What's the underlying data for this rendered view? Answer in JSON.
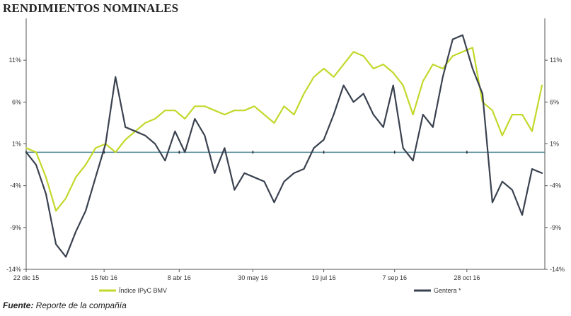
{
  "title": "RENDIMIENTOS NOMINALES",
  "source": {
    "label": "Fuente:",
    "text": " Reporte de la compañía"
  },
  "chart_data": {
    "type": "line",
    "title": "RENDIMIENTOS NOMINALES",
    "xlabel": "",
    "ylabel": "",
    "ylim": [
      -14,
      16
    ],
    "y_ticks": [
      "11%",
      "6%",
      "1%",
      "-4%",
      "-9%",
      "-14%"
    ],
    "y_tick_values": [
      11,
      6,
      1,
      -4,
      -9,
      -14
    ],
    "x_tick_labels": [
      "22 dic 15",
      "15 feb 16",
      "8 abr 16",
      "30 may 16",
      "19 jul 16",
      "7 sep 16",
      "28 oct 16"
    ],
    "x_tick_dates": [
      "2015-12-22",
      "2016-02-15",
      "2016-04-08",
      "2016-05-30",
      "2016-07-19",
      "2016-09-07",
      "2016-10-28"
    ],
    "x_range": [
      "2015-12-22",
      "2016-12-22"
    ],
    "baseline": 0,
    "grid": false,
    "axes_on_both_sides": true,
    "legend_position": "bottom",
    "colors": {
      "indice": "#c3d82b",
      "gentera": "#3a4250",
      "baseline": "#4e8496"
    },
    "series": [
      {
        "name": "Índice IPyC BMV",
        "x": [
          "2015-12-22",
          "2015-12-29",
          "2016-01-05",
          "2016-01-12",
          "2016-01-19",
          "2016-01-26",
          "2016-02-02",
          "2016-02-09",
          "2016-02-16",
          "2016-02-23",
          "2016-03-01",
          "2016-03-08",
          "2016-03-15",
          "2016-03-22",
          "2016-03-29",
          "2016-04-05",
          "2016-04-12",
          "2016-04-19",
          "2016-04-26",
          "2016-05-03",
          "2016-05-10",
          "2016-05-17",
          "2016-05-24",
          "2016-05-31",
          "2016-06-07",
          "2016-06-14",
          "2016-06-21",
          "2016-06-28",
          "2016-07-05",
          "2016-07-12",
          "2016-07-19",
          "2016-07-26",
          "2016-08-02",
          "2016-08-09",
          "2016-08-16",
          "2016-08-23",
          "2016-08-30",
          "2016-09-06",
          "2016-09-13",
          "2016-09-20",
          "2016-09-27",
          "2016-10-04",
          "2016-10-11",
          "2016-10-18",
          "2016-10-25",
          "2016-11-01",
          "2016-11-08",
          "2016-11-15",
          "2016-11-22",
          "2016-11-29",
          "2016-12-06",
          "2016-12-13",
          "2016-12-20"
        ],
        "values": [
          0.5,
          0.0,
          -3.0,
          -7.0,
          -5.5,
          -3.0,
          -1.5,
          0.5,
          1.0,
          0.0,
          1.5,
          2.5,
          3.5,
          4.0,
          5.0,
          5.0,
          4.0,
          5.5,
          5.5,
          5.0,
          4.5,
          5.0,
          5.0,
          5.5,
          4.5,
          3.5,
          5.5,
          4.5,
          7.0,
          9.0,
          10.0,
          9.0,
          10.5,
          12.0,
          11.5,
          10.0,
          10.5,
          9.5,
          8.0,
          4.5,
          8.5,
          10.5,
          10.0,
          11.5,
          12.0,
          12.5,
          6.0,
          5.0,
          2.0,
          4.5,
          4.5,
          2.5,
          8.0
        ]
      },
      {
        "name": "Gentera *",
        "x": [
          "2015-12-22",
          "2015-12-29",
          "2016-01-05",
          "2016-01-12",
          "2016-01-19",
          "2016-01-26",
          "2016-02-02",
          "2016-02-09",
          "2016-02-16",
          "2016-02-23",
          "2016-03-01",
          "2016-03-08",
          "2016-03-15",
          "2016-03-22",
          "2016-03-29",
          "2016-04-05",
          "2016-04-12",
          "2016-04-19",
          "2016-04-26",
          "2016-05-03",
          "2016-05-10",
          "2016-05-17",
          "2016-05-24",
          "2016-05-31",
          "2016-06-07",
          "2016-06-14",
          "2016-06-21",
          "2016-06-28",
          "2016-07-05",
          "2016-07-12",
          "2016-07-19",
          "2016-07-26",
          "2016-08-02",
          "2016-08-09",
          "2016-08-16",
          "2016-08-23",
          "2016-08-30",
          "2016-09-06",
          "2016-09-13",
          "2016-09-20",
          "2016-09-27",
          "2016-10-04",
          "2016-10-11",
          "2016-10-18",
          "2016-10-25",
          "2016-11-01",
          "2016-11-08",
          "2016-11-15",
          "2016-11-22",
          "2016-11-29",
          "2016-12-06",
          "2016-12-13",
          "2016-12-20"
        ],
        "values": [
          0.0,
          -1.5,
          -5.0,
          -11.0,
          -12.5,
          -9.5,
          -7.0,
          -3.0,
          1.0,
          9.0,
          3.0,
          2.5,
          2.0,
          1.0,
          -1.0,
          2.5,
          0.0,
          4.0,
          2.0,
          -2.5,
          0.5,
          -4.5,
          -2.5,
          -3.0,
          -3.5,
          -6.0,
          -3.5,
          -2.5,
          -2.0,
          0.5,
          1.5,
          4.5,
          8.0,
          6.0,
          7.0,
          4.5,
          3.0,
          8.0,
          0.5,
          -1.0,
          4.5,
          3.0,
          9.0,
          13.5,
          14.0,
          10.0,
          7.0,
          -6.0,
          -3.5,
          -4.5,
          -7.5,
          -2.0,
          -2.5
        ]
      }
    ]
  }
}
